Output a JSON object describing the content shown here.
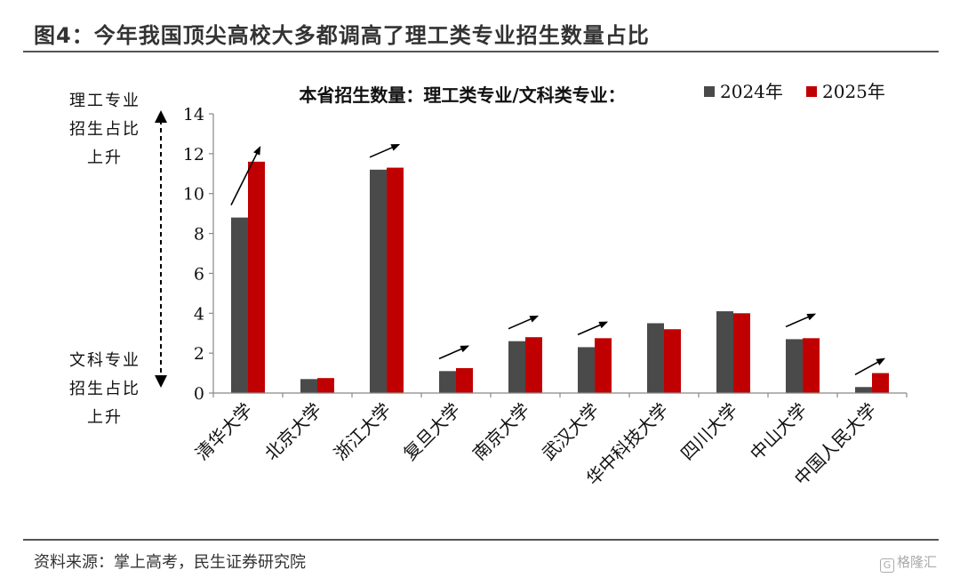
{
  "figure_title": "图4：今年我国顶尖高校大多都调高了理工类专业招生数量占比",
  "source": "资料来源：掌上高考，民生证券研究院",
  "watermark": "格隆汇",
  "side_labels": {
    "up": [
      "理工专业",
      "招生占比",
      "上升"
    ],
    "down": [
      "文科专业",
      "招生占比",
      "上升"
    ]
  },
  "colors": {
    "s2024": "#4a4a4a",
    "s2025": "#c00000",
    "axis": "#888888"
  },
  "chart_data": {
    "type": "bar",
    "title": "本省招生数量：理工类专业/文科类专业：",
    "legend_position": "top-right",
    "categories": [
      "清华大学",
      "北京大学",
      "浙江大学",
      "复旦大学",
      "南京大学",
      "武汉大学",
      "华中科技大学",
      "四川大学",
      "中山大学",
      "中国人民大学"
    ],
    "series": [
      {
        "name": "2024年",
        "values": [
          8.8,
          0.7,
          11.2,
          1.1,
          2.6,
          2.3,
          3.5,
          4.1,
          2.7,
          0.3
        ]
      },
      {
        "name": "2025年",
        "values": [
          11.6,
          0.75,
          11.3,
          1.25,
          2.8,
          2.75,
          3.2,
          4.0,
          2.75,
          1.0
        ]
      }
    ],
    "ylim": [
      0,
      14
    ],
    "yticks": [
      0,
      2,
      4,
      6,
      8,
      10,
      12,
      14
    ],
    "increase_arrows": [
      "清华大学",
      "浙江大学",
      "复旦大学",
      "南京大学",
      "武汉大学",
      "中山大学",
      "中国人民大学"
    ],
    "grid": false
  }
}
